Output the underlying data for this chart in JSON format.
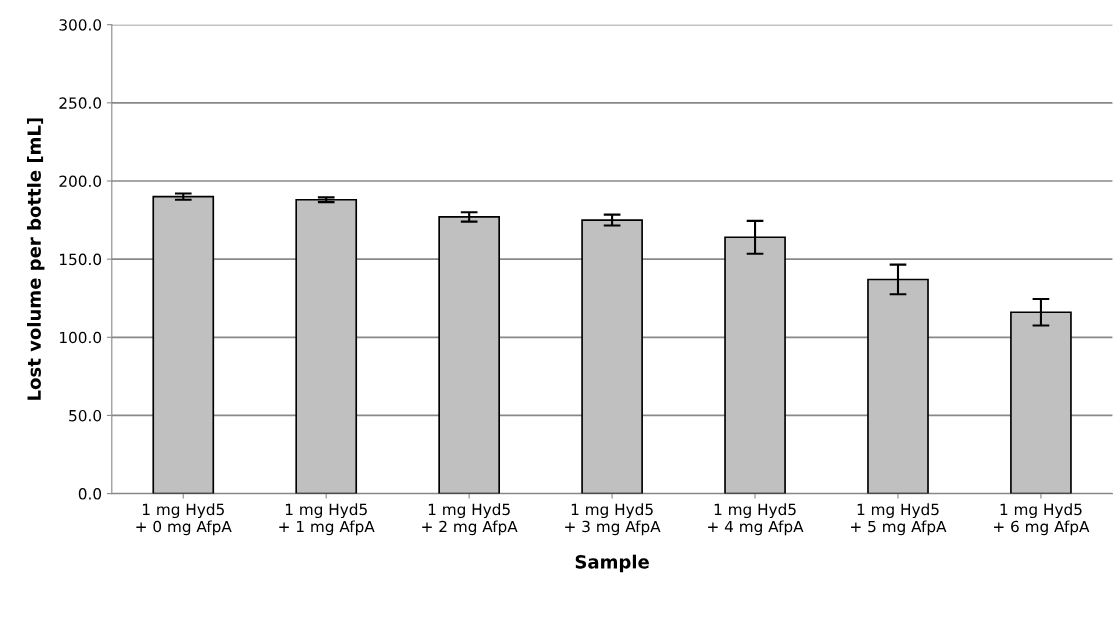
{
  "chart_data": {
    "type": "bar",
    "xlabel": "Sample",
    "ylabel": "Lost volume per bottle [mL]",
    "categories": [
      "1 mg Hyd5\n+ 0 mg AfpA",
      "1 mg Hyd5\n+ 1 mg AfpA",
      "1 mg Hyd5\n+ 2 mg AfpA",
      "1 mg Hyd5\n+ 3 mg AfpA",
      "1 mg Hyd5\n+ 4 mg AfpA",
      "1 mg Hyd5\n+ 5 mg AfpA",
      "1 mg Hyd5\n+ 6 mg AfpA"
    ],
    "values": [
      190,
      188,
      177,
      175,
      164,
      137,
      116
    ],
    "errors": [
      2,
      1.5,
      3,
      3.5,
      10.5,
      9.5,
      8.5
    ],
    "color": "#c0c0c0",
    "ylim": [
      0,
      300
    ],
    "yticks": [
      {
        "value": 0,
        "label": "0.0"
      },
      {
        "value": 50,
        "label": "50.0"
      },
      {
        "value": 100,
        "label": "100.0"
      },
      {
        "value": 150,
        "label": "150.0"
      },
      {
        "value": 200,
        "label": "200.0"
      },
      {
        "value": 250,
        "label": "250.0"
      },
      {
        "value": 300,
        "label": "300.0"
      }
    ],
    "grid": "y",
    "legend": false
  }
}
